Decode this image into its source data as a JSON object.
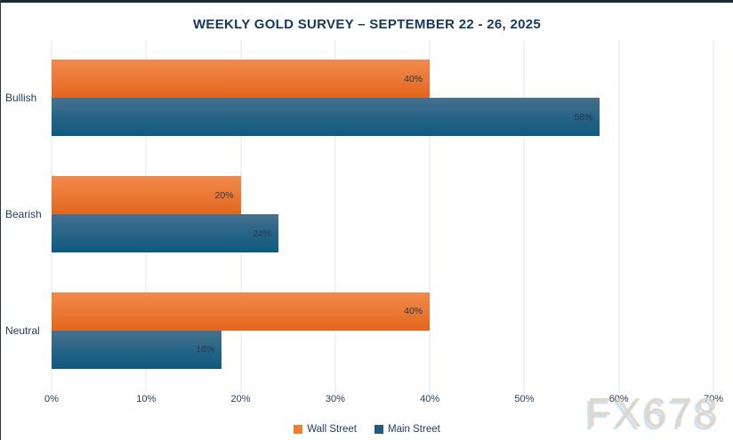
{
  "chart_data": {
    "type": "bar",
    "orientation": "horizontal",
    "title": "WEEKLY GOLD SURVEY – SEPTEMBER 22 - 26, 2025",
    "categories": [
      "Bullish",
      "Bearish",
      "Neutral"
    ],
    "series": [
      {
        "name": "Wall Street",
        "color": "#ED7D31",
        "values": [
          40,
          20,
          40
        ]
      },
      {
        "name": "Main Street",
        "color": "#1F5C7E",
        "values": [
          58,
          24,
          18
        ]
      }
    ],
    "data_labels": [
      [
        "40%",
        "20%",
        "40%"
      ],
      [
        "58%",
        "24%",
        "18%"
      ]
    ],
    "xlabel": "",
    "ylabel": "",
    "xlim": [
      0,
      70
    ],
    "x_ticks": [
      "0%",
      "10%",
      "20%",
      "30%",
      "40%",
      "50%",
      "60%",
      "70%"
    ],
    "grid": "vertical",
    "legend_position": "bottom-center"
  },
  "colors": {
    "title_text": "#17375E",
    "axis_text": "#1F3B5C",
    "gridline": "#D9E6F2",
    "top_border": "#1B2A3B",
    "wall_street": "#ED7D31",
    "main_street": "#1F5C7E"
  },
  "watermark": {
    "text": "FX678"
  }
}
